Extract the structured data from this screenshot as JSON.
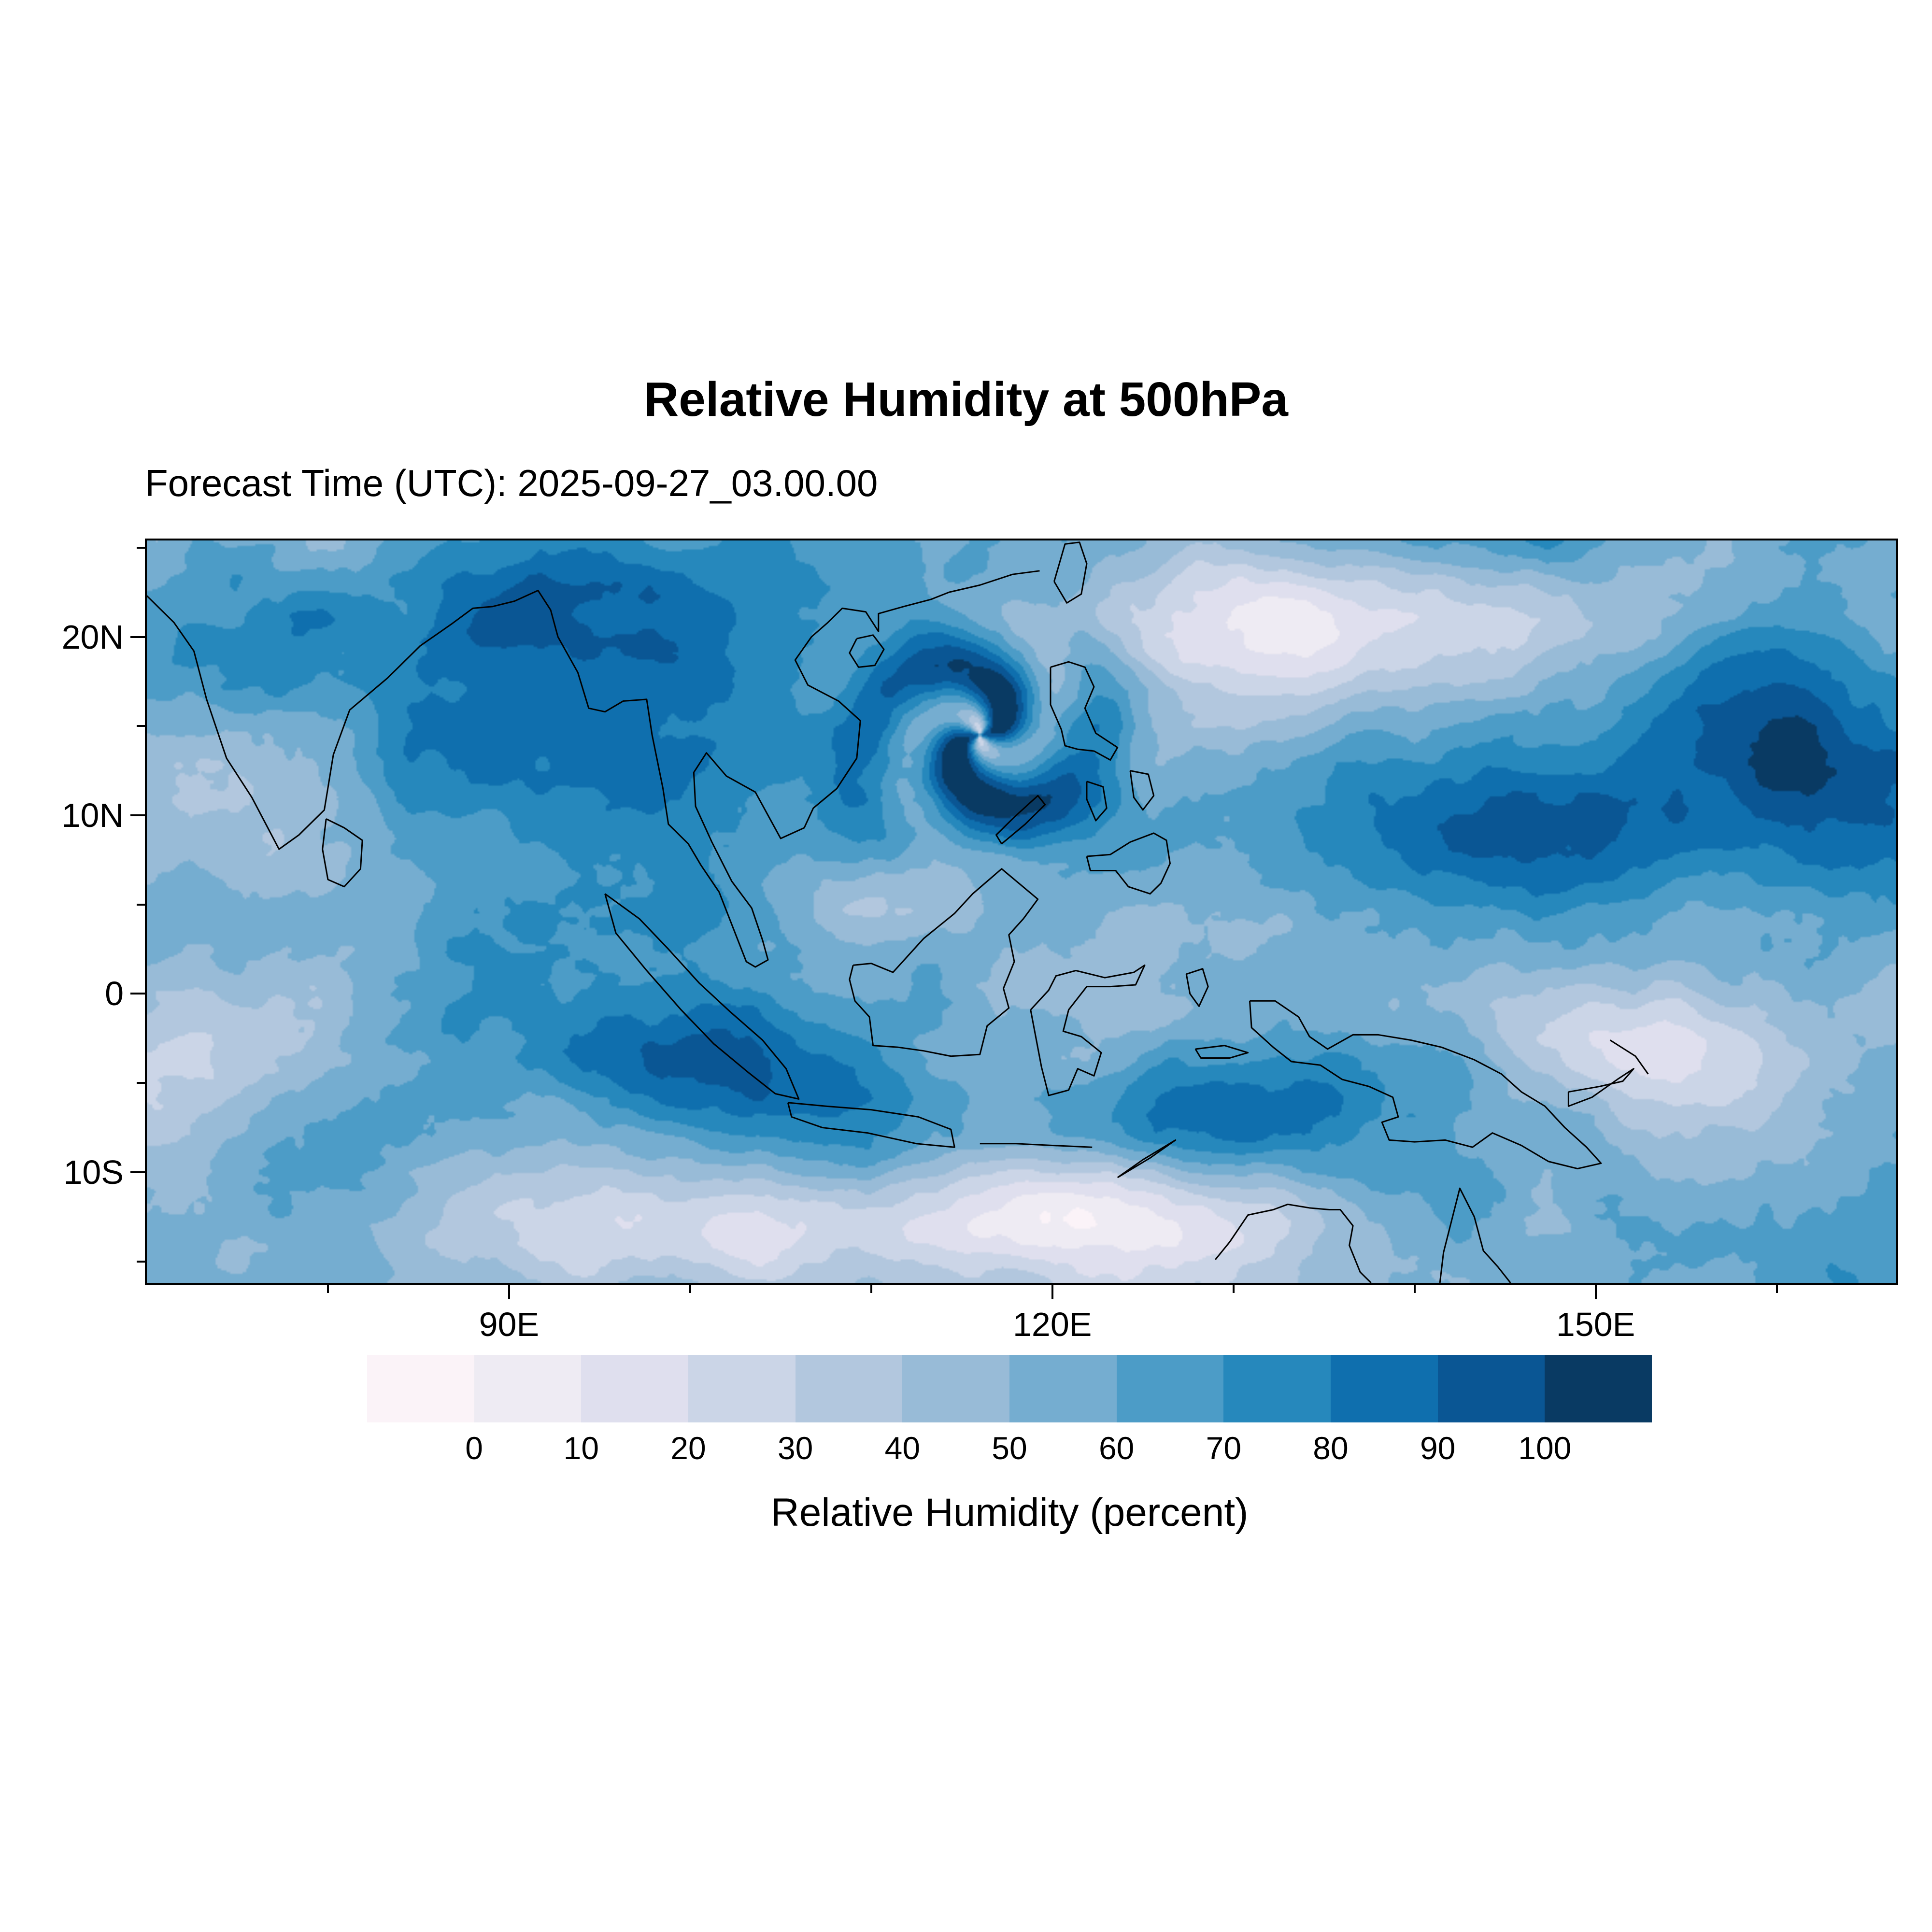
{
  "page": {
    "background": "#ffffff"
  },
  "chart": {
    "title": "Relative Humidity at 500hPa",
    "forecast_time_label": "Forecast Time (UTC): 2025-09-27_03.00.00",
    "colorbar_title": "Relative Humidity (percent)"
  },
  "chart_data": {
    "type": "heatmap",
    "title": "Relative Humidity at 500hPa",
    "subtitle": "Forecast Time (UTC): 2025-09-27_03.00.00",
    "forecast_time_utc": "2025-09-27_03.00.00",
    "variable": "Relative Humidity",
    "pressure_level": "500hPa",
    "units": "percent",
    "grid": false,
    "colorbar": {
      "title": "Relative Humidity (percent)",
      "tick_labels": [
        "0",
        "10",
        "20",
        "30",
        "40",
        "50",
        "60",
        "70",
        "80",
        "90",
        "100"
      ],
      "levels": [
        0,
        10,
        20,
        30,
        40,
        50,
        60,
        70,
        80,
        90,
        100
      ],
      "colors": [
        "#fbf3f8",
        "#eeebf3",
        "#dfdfee",
        "#cbd5e7",
        "#b2c7de",
        "#98bbd7",
        "#75add0",
        "#4c9cc7",
        "#2688bc",
        "#0f6fae",
        "#0a5694",
        "#093a63"
      ],
      "position": "bottom"
    },
    "x_axis": {
      "lon_min": 70,
      "lon_max": 166.6,
      "ticks": [
        {
          "label": "90E",
          "lon": 90
        },
        {
          "label": "120E",
          "lon": 120
        },
        {
          "label": "150E",
          "lon": 150
        }
      ],
      "minor_lons": [
        80,
        100,
        110,
        130,
        140,
        160
      ]
    },
    "y_axis": {
      "lat_min": -16.2,
      "lat_max": 25.4,
      "ticks": [
        {
          "label": "20N",
          "lat": 20
        },
        {
          "label": "10N",
          "lat": 10
        },
        {
          "label": "0",
          "lat": 0
        },
        {
          "label": "10S",
          "lat": -10
        }
      ],
      "minor_lats": [
        25,
        15,
        5,
        -5,
        -15
      ]
    },
    "features": {
      "cyclone_center": {
        "lon": 116,
        "lat": 14.5
      }
    },
    "coastlines": [
      [
        [
          70,
          22.3
        ],
        [
          71.5,
          20.8
        ],
        [
          72.6,
          19.2
        ],
        [
          73.3,
          16.5
        ],
        [
          74.4,
          13.2
        ],
        [
          75.8,
          11
        ],
        [
          77.3,
          8.1
        ],
        [
          78.4,
          8.9
        ],
        [
          79.8,
          10.3
        ],
        [
          80.3,
          13.4
        ],
        [
          81.2,
          15.9
        ],
        [
          83.3,
          17.7
        ],
        [
          85.1,
          19.5
        ],
        [
          86.8,
          20.7
        ],
        [
          88,
          21.6
        ],
        [
          89.1,
          21.7
        ],
        [
          90.3,
          22
        ],
        [
          91.6,
          22.6
        ],
        [
          92.3,
          21.5
        ],
        [
          92.7,
          20
        ]
      ],
      [
        [
          92.7,
          20
        ],
        [
          93.8,
          18
        ],
        [
          94.4,
          16
        ],
        [
          95.3,
          15.8
        ],
        [
          96.3,
          16.4
        ],
        [
          97.6,
          16.5
        ],
        [
          97.9,
          14.5
        ],
        [
          98.5,
          11.5
        ],
        [
          98.8,
          9.5
        ],
        [
          99.9,
          8.4
        ],
        [
          100.6,
          7.2
        ],
        [
          101.6,
          5.7
        ],
        [
          103.1,
          1.8
        ],
        [
          103.6,
          1.5
        ],
        [
          104.3,
          1.9
        ],
        [
          104,
          3
        ],
        [
          103.4,
          4.8
        ],
        [
          102.3,
          6.3
        ],
        [
          101.2,
          8.5
        ],
        [
          100.3,
          10.5
        ],
        [
          100.2,
          12.4
        ],
        [
          100.9,
          13.5
        ],
        [
          102,
          12.2
        ],
        [
          103.6,
          11.3
        ],
        [
          105,
          8.7
        ],
        [
          106.3,
          9.3
        ],
        [
          106.8,
          10.4
        ],
        [
          108.1,
          11.5
        ],
        [
          109.2,
          13.2
        ],
        [
          109.4,
          15.3
        ],
        [
          108.2,
          16.4
        ],
        [
          106.5,
          17.3
        ],
        [
          105.8,
          18.7
        ],
        [
          106.7,
          20
        ],
        [
          107.6,
          20.8
        ],
        [
          108.4,
          21.6
        ],
        [
          109.7,
          21.4
        ],
        [
          110.4,
          20.3
        ],
        [
          110.4,
          21.3
        ],
        [
          111.8,
          21.7
        ],
        [
          113.3,
          22.1
        ],
        [
          114.3,
          22.5
        ],
        [
          116,
          22.9
        ],
        [
          117.8,
          23.5
        ],
        [
          119.3,
          23.7
        ]
      ],
      [
        [
          109.2,
          19.9
        ],
        [
          110.1,
          20.1
        ],
        [
          110.7,
          19.3
        ],
        [
          110.2,
          18.4
        ],
        [
          109.3,
          18.3
        ],
        [
          108.8,
          19.1
        ],
        [
          109.2,
          19.9
        ]
      ],
      [
        [
          120.1,
          23.1
        ],
        [
          120.8,
          21.9
        ],
        [
          121.6,
          22.4
        ],
        [
          121.9,
          24.1
        ],
        [
          121.5,
          25.3
        ],
        [
          120.7,
          25.2
        ],
        [
          120.1,
          23.1
        ]
      ],
      [
        [
          79.9,
          9.8
        ],
        [
          80.9,
          9.3
        ],
        [
          81.9,
          8.6
        ],
        [
          81.8,
          7
        ],
        [
          80.9,
          6
        ],
        [
          80,
          6.4
        ],
        [
          79.7,
          8.1
        ],
        [
          79.9,
          9.8
        ]
      ],
      [
        [
          95.3,
          5.6
        ],
        [
          97.2,
          4.2
        ],
        [
          98.8,
          2.5
        ],
        [
          100.5,
          0.6
        ],
        [
          102.2,
          -1
        ],
        [
          104,
          -2.6
        ],
        [
          105.3,
          -4.2
        ],
        [
          106,
          -5.9
        ],
        [
          104.7,
          -5.6
        ],
        [
          103.2,
          -4.4
        ],
        [
          101.3,
          -2.8
        ],
        [
          99.5,
          -0.9
        ],
        [
          97.6,
          1.3
        ],
        [
          95.9,
          3.4
        ],
        [
          95.3,
          5.6
        ]
      ],
      [
        [
          105.4,
          -6.1
        ],
        [
          107.5,
          -6.3
        ],
        [
          110,
          -6.5
        ],
        [
          112.6,
          -6.9
        ],
        [
          114.4,
          -7.6
        ],
        [
          114.6,
          -8.6
        ],
        [
          112.5,
          -8.4
        ],
        [
          109.8,
          -7.8
        ],
        [
          107.3,
          -7.5
        ],
        [
          105.6,
          -6.9
        ],
        [
          105.4,
          -6.1
        ]
      ],
      [
        [
          109,
          1.6
        ],
        [
          110,
          1.7
        ],
        [
          111.2,
          1.2
        ],
        [
          112.9,
          3.1
        ],
        [
          114.6,
          4.5
        ],
        [
          115.6,
          5.6
        ],
        [
          117.2,
          7
        ],
        [
          119.2,
          5.3
        ],
        [
          118.4,
          4.2
        ],
        [
          117.6,
          3.3
        ],
        [
          117.9,
          1.8
        ],
        [
          117.3,
          0.3
        ],
        [
          117.6,
          -0.8
        ],
        [
          116.4,
          -1.8
        ],
        [
          116,
          -3.4
        ],
        [
          114.4,
          -3.5
        ],
        [
          112.9,
          -3.2
        ],
        [
          111.5,
          -3
        ],
        [
          110.1,
          -2.9
        ],
        [
          109.9,
          -1.3
        ],
        [
          109.1,
          -0.4
        ],
        [
          108.8,
          0.8
        ],
        [
          109,
          1.6
        ]
      ],
      [
        [
          118.8,
          -0.9
        ],
        [
          119.8,
          0.2
        ],
        [
          120.2,
          1
        ],
        [
          121.3,
          1.3
        ],
        [
          122.9,
          0.9
        ],
        [
          124.5,
          1.2
        ],
        [
          125.1,
          1.6
        ],
        [
          124.6,
          0.5
        ],
        [
          123.2,
          0.4
        ],
        [
          121.9,
          0.4
        ],
        [
          120.9,
          -0.9
        ],
        [
          120.6,
          -2.1
        ],
        [
          121.6,
          -2.4
        ],
        [
          122.7,
          -3.3
        ],
        [
          122.3,
          -4.6
        ],
        [
          121.4,
          -4.2
        ],
        [
          120.9,
          -5.4
        ],
        [
          119.8,
          -5.7
        ],
        [
          119.4,
          -4.1
        ],
        [
          119.1,
          -2.5
        ],
        [
          118.8,
          -0.9
        ]
      ],
      [
        [
          119.9,
          18.3
        ],
        [
          120.9,
          18.6
        ],
        [
          121.8,
          18.3
        ],
        [
          122.3,
          17.2
        ],
        [
          121.8,
          16
        ],
        [
          122.4,
          14.6
        ],
        [
          123.6,
          13.8
        ],
        [
          123.2,
          13.1
        ],
        [
          122.3,
          13.6
        ],
        [
          121.4,
          13.7
        ],
        [
          120.7,
          13.9
        ],
        [
          120.5,
          14.8
        ],
        [
          119.9,
          16.2
        ],
        [
          119.9,
          18.3
        ]
      ],
      [
        [
          124.3,
          12.5
        ],
        [
          125.3,
          12.3
        ],
        [
          125.6,
          11.1
        ],
        [
          125,
          10.3
        ],
        [
          124.5,
          11
        ],
        [
          124.3,
          12.5
        ]
      ],
      [
        [
          121.9,
          11.9
        ],
        [
          122.8,
          11.6
        ],
        [
          123,
          10.4
        ],
        [
          122.4,
          9.7
        ],
        [
          121.9,
          10.9
        ],
        [
          121.9,
          11.9
        ]
      ],
      [
        [
          117.2,
          8.4
        ],
        [
          118.5,
          9.5
        ],
        [
          119.6,
          10.6
        ],
        [
          119.2,
          11.1
        ],
        [
          117.9,
          9.9
        ],
        [
          116.9,
          8.9
        ],
        [
          117.2,
          8.4
        ]
      ],
      [
        [
          121.9,
          7.7
        ],
        [
          123.2,
          7.8
        ],
        [
          124.3,
          8.5
        ],
        [
          125.6,
          9
        ],
        [
          126.3,
          8.6
        ],
        [
          126.5,
          7.3
        ],
        [
          126,
          6.2
        ],
        [
          125.4,
          5.6
        ],
        [
          124.2,
          6
        ],
        [
          123.5,
          6.9
        ],
        [
          122.1,
          6.9
        ],
        [
          121.9,
          7.7
        ]
      ],
      [
        [
          127.4,
          1.1
        ],
        [
          128.3,
          1.4
        ],
        [
          128.6,
          0.4
        ],
        [
          128.1,
          -0.7
        ],
        [
          127.6,
          0
        ],
        [
          127.4,
          1.1
        ]
      ],
      [
        [
          127.9,
          -3.1
        ],
        [
          129.5,
          -2.9
        ],
        [
          130.8,
          -3.3
        ],
        [
          129.8,
          -3.6
        ],
        [
          128.2,
          -3.6
        ],
        [
          127.9,
          -3.1
        ]
      ],
      [
        [
          116,
          -8.4
        ],
        [
          118,
          -8.4
        ],
        [
          120,
          -8.5
        ],
        [
          122.2,
          -8.6
        ]
      ],
      [
        [
          123.6,
          -10.3
        ],
        [
          125,
          -9.3
        ],
        [
          126.8,
          -8.2
        ],
        [
          125.4,
          -9.2
        ],
        [
          123.6,
          -10.3
        ]
      ],
      [
        [
          130.9,
          -0.4
        ],
        [
          132.3,
          -0.4
        ],
        [
          133.6,
          -1.3
        ],
        [
          134.2,
          -2.4
        ],
        [
          135.2,
          -3.1
        ],
        [
          136.6,
          -2.3
        ],
        [
          138,
          -2.3
        ],
        [
          139.8,
          -2.6
        ],
        [
          141.5,
          -3
        ],
        [
          143.3,
          -3.7
        ],
        [
          144.8,
          -4.5
        ],
        [
          145.9,
          -5.5
        ],
        [
          147.2,
          -6.3
        ],
        [
          148.3,
          -7.5
        ],
        [
          149.5,
          -8.6
        ],
        [
          150.3,
          -9.5
        ],
        [
          149,
          -9.8
        ],
        [
          147.4,
          -9.4
        ],
        [
          145.9,
          -8.5
        ],
        [
          144.3,
          -7.8
        ],
        [
          143.2,
          -8.6
        ],
        [
          141.7,
          -8.2
        ],
        [
          140,
          -8.3
        ],
        [
          138.6,
          -8.2
        ],
        [
          138.2,
          -7.2
        ],
        [
          139.1,
          -6.9
        ],
        [
          138.8,
          -5.8
        ],
        [
          137.5,
          -5.2
        ],
        [
          136,
          -4.8
        ],
        [
          134.8,
          -4
        ],
        [
          133.2,
          -3.8
        ],
        [
          132.2,
          -3
        ],
        [
          131,
          -1.9
        ],
        [
          130.9,
          -0.4
        ]
      ],
      [
        [
          148.5,
          -5.5
        ],
        [
          150.2,
          -5.2
        ],
        [
          151.5,
          -4.9
        ],
        [
          152.1,
          -4.2
        ],
        [
          151.2,
          -4.8
        ],
        [
          149.8,
          -5.8
        ],
        [
          148.5,
          -6.3
        ],
        [
          148.5,
          -5.5
        ]
      ],
      [
        [
          150.8,
          -2.6
        ],
        [
          152.2,
          -3.5
        ],
        [
          152.9,
          -4.5
        ]
      ],
      [
        [
          129,
          -14.9
        ],
        [
          129.8,
          -13.9
        ],
        [
          130.8,
          -12.4
        ],
        [
          132.2,
          -12.1
        ],
        [
          133,
          -11.8
        ],
        [
          134.2,
          -12
        ],
        [
          135.3,
          -12.1
        ],
        [
          135.9,
          -12.1
        ],
        [
          136.6,
          -13
        ],
        [
          136.4,
          -14.1
        ],
        [
          137,
          -15.6
        ],
        [
          137.6,
          -16.2
        ]
      ],
      [
        [
          141.4,
          -16.2
        ],
        [
          141.6,
          -14.5
        ],
        [
          142.1,
          -12.5
        ],
        [
          142.5,
          -10.9
        ],
        [
          143.3,
          -12.5
        ],
        [
          143.8,
          -14.4
        ],
        [
          144.6,
          -15.3
        ],
        [
          145.3,
          -16.2
        ]
      ]
    ]
  }
}
